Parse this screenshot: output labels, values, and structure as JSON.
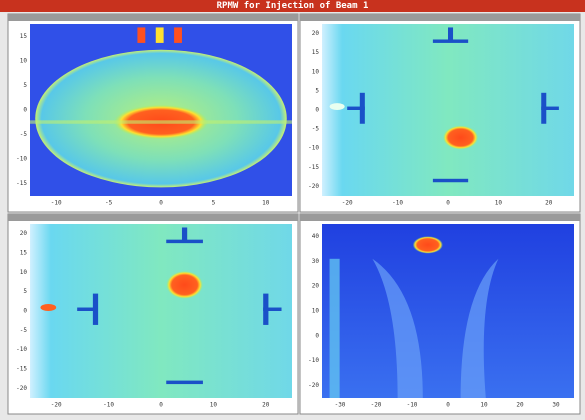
{
  "header": {
    "title": "RPMW for Injection of Beam 1"
  },
  "panels": [
    {
      "xticks": [
        -10,
        -5,
        0,
        5,
        10
      ],
      "yticks": [
        15,
        10,
        5,
        0,
        -5,
        -10,
        -15
      ]
    },
    {
      "xticks": [
        -20,
        -10,
        0,
        10,
        20
      ],
      "yticks": [
        20,
        15,
        10,
        5,
        0,
        -5,
        -10,
        -15,
        -20
      ]
    },
    {
      "xticks": [
        -20,
        -10,
        0,
        10,
        20
      ],
      "yticks": [
        20,
        15,
        10,
        5,
        0,
        -5,
        -10,
        -15,
        -20
      ]
    },
    {
      "xticks": [
        -30,
        -20,
        -10,
        0,
        10,
        20,
        30
      ],
      "yticks": [
        40,
        30,
        20,
        10,
        0,
        -10,
        -20
      ]
    }
  ]
}
